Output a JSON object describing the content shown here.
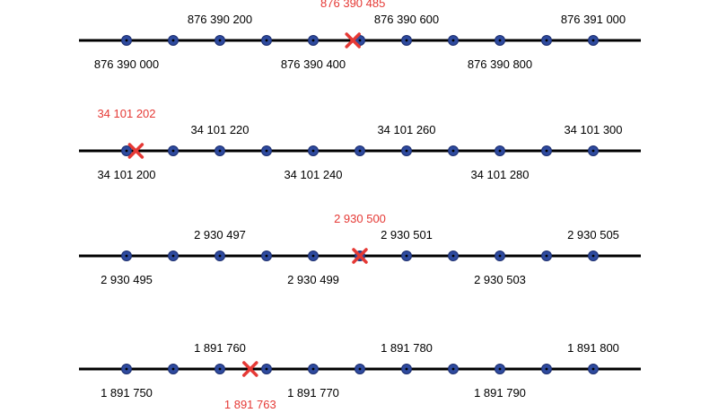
{
  "colors": {
    "line": "#000000",
    "tick_fill": "#2e4a9e",
    "tick_stroke": "#1a2c6e",
    "tick_center": "#000000",
    "text": "#000000",
    "highlight": "#e53935"
  },
  "number_lines": [
    {
      "tick_labels": [
        {
          "index": 0,
          "text": "876 390 000",
          "side": "below"
        },
        {
          "index": 2,
          "text": "876 390 200",
          "side": "above"
        },
        {
          "index": 4,
          "text": "876 390 400",
          "side": "below"
        },
        {
          "index": 6,
          "text": "876 390 600",
          "side": "above"
        },
        {
          "index": 8,
          "text": "876 390 800",
          "side": "below"
        },
        {
          "index": 10,
          "text": "876 391 000",
          "side": "above"
        }
      ],
      "marker": {
        "position": 4.85,
        "text": "876 390 485",
        "side": "above"
      }
    },
    {
      "tick_labels": [
        {
          "index": 0,
          "text": "34 101 200",
          "side": "below"
        },
        {
          "index": 2,
          "text": "34 101 220",
          "side": "above"
        },
        {
          "index": 4,
          "text": "34 101 240",
          "side": "below"
        },
        {
          "index": 6,
          "text": "34 101 260",
          "side": "above"
        },
        {
          "index": 8,
          "text": "34 101 280",
          "side": "below"
        },
        {
          "index": 10,
          "text": "34 101 300",
          "side": "above"
        }
      ],
      "marker": {
        "position": 0.2,
        "text": "34 101 202",
        "side": "above"
      }
    },
    {
      "tick_labels": [
        {
          "index": 0,
          "text": "2 930 495",
          "side": "below"
        },
        {
          "index": 2,
          "text": "2 930 497",
          "side": "above"
        },
        {
          "index": 4,
          "text": "2 930 499",
          "side": "below"
        },
        {
          "index": 6,
          "text": "2 930 501",
          "side": "above"
        },
        {
          "index": 8,
          "text": "2 930 503",
          "side": "below"
        },
        {
          "index": 10,
          "text": "2 930 505",
          "side": "above"
        }
      ],
      "marker": {
        "position": 5,
        "text": "2 930 500",
        "side": "above"
      }
    },
    {
      "tick_labels": [
        {
          "index": 0,
          "text": "1 891 750",
          "side": "below"
        },
        {
          "index": 2,
          "text": "1 891 760",
          "side": "above"
        },
        {
          "index": 4,
          "text": "1 891 770",
          "side": "below"
        },
        {
          "index": 6,
          "text": "1 891 780",
          "side": "above"
        },
        {
          "index": 8,
          "text": "1 891 790",
          "side": "below"
        },
        {
          "index": 10,
          "text": "1 891 800",
          "side": "above"
        }
      ],
      "marker": {
        "position": 2.65,
        "text": "1 891 763",
        "side": "below"
      }
    }
  ]
}
